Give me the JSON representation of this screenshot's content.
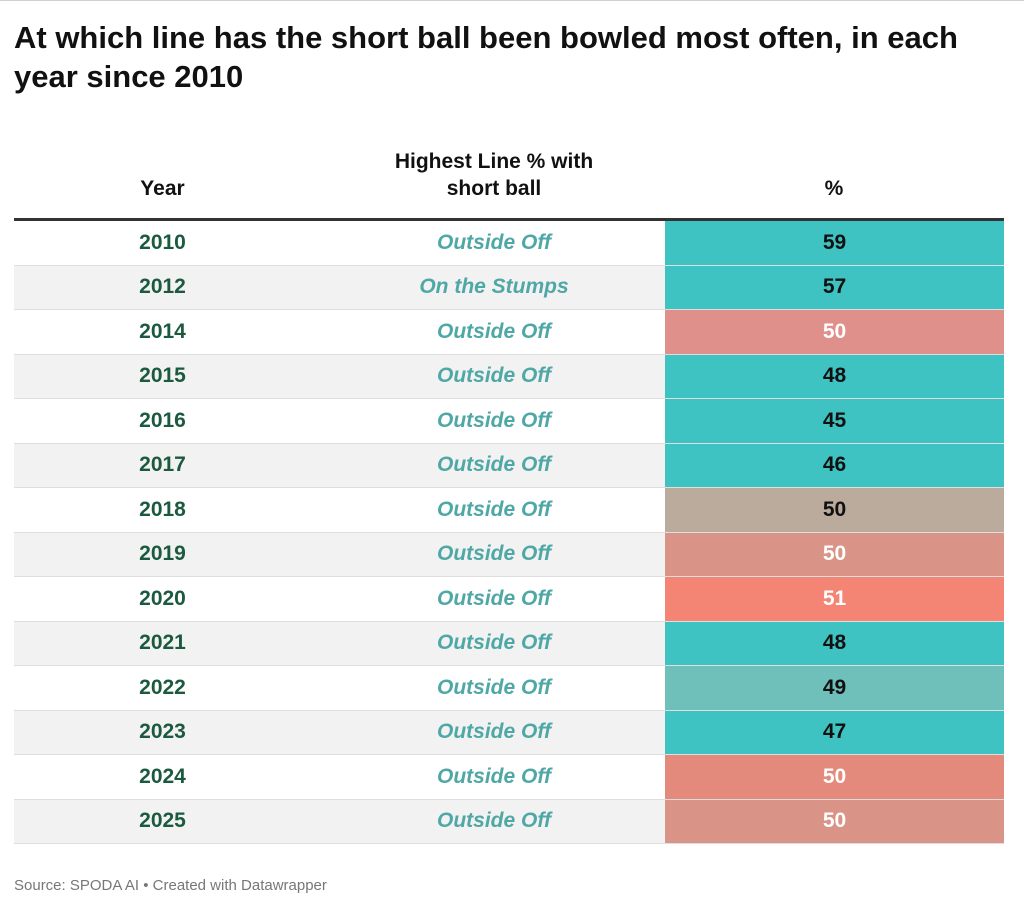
{
  "title": "At which line has the short ball been bowled most often, in each year since 2010",
  "source": "Source: SPODA AI • Created with Datawrapper",
  "chart_data": {
    "type": "table",
    "columns": [
      "Year",
      "Highest Line % with short ball",
      "%"
    ],
    "columns_display": {
      "year": "Year",
      "line_1": "Highest Line % with",
      "line_2": "short ball",
      "pct": "%"
    },
    "rows": [
      {
        "year": "2010",
        "line": "Outside Off",
        "pct": "59",
        "bg": "#3fc3c2",
        "fg": "#111111"
      },
      {
        "year": "2012",
        "line": "On the Stumps",
        "pct": "57",
        "bg": "#3fc3c2",
        "fg": "#111111"
      },
      {
        "year": "2014",
        "line": "Outside Off",
        "pct": "50",
        "bg": "#e0908a",
        "fg": "#ffffff"
      },
      {
        "year": "2015",
        "line": "Outside Off",
        "pct": "48",
        "bg": "#3fc3c2",
        "fg": "#111111"
      },
      {
        "year": "2016",
        "line": "Outside Off",
        "pct": "45",
        "bg": "#3fc3c2",
        "fg": "#111111"
      },
      {
        "year": "2017",
        "line": "Outside Off",
        "pct": "46",
        "bg": "#3fc3c2",
        "fg": "#111111"
      },
      {
        "year": "2018",
        "line": "Outside Off",
        "pct": "50",
        "bg": "#baab9d",
        "fg": "#111111"
      },
      {
        "year": "2019",
        "line": "Outside Off",
        "pct": "50",
        "bg": "#d99487",
        "fg": "#ffffff"
      },
      {
        "year": "2020",
        "line": "Outside Off",
        "pct": "51",
        "bg": "#f48474",
        "fg": "#ffffff"
      },
      {
        "year": "2021",
        "line": "Outside Off",
        "pct": "48",
        "bg": "#3fc3c2",
        "fg": "#111111"
      },
      {
        "year": "2022",
        "line": "Outside Off",
        "pct": "49",
        "bg": "#6fbfba",
        "fg": "#111111"
      },
      {
        "year": "2023",
        "line": "Outside Off",
        "pct": "47",
        "bg": "#3fc3c2",
        "fg": "#111111"
      },
      {
        "year": "2024",
        "line": "Outside Off",
        "pct": "50",
        "bg": "#e48a7d",
        "fg": "#ffffff"
      },
      {
        "year": "2025",
        "line": "Outside Off",
        "pct": "50",
        "bg": "#d99487",
        "fg": "#ffffff"
      }
    ]
  }
}
